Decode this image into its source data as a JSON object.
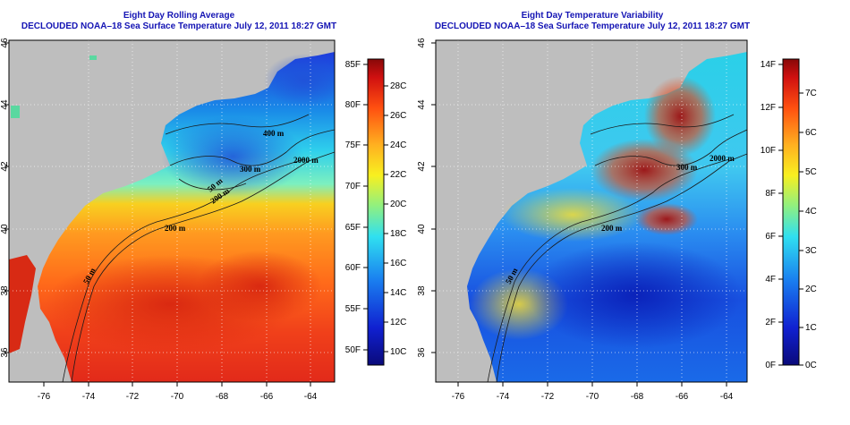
{
  "left_panel": {
    "title_line1": "Eight Day Rolling Average",
    "title_line2": "DECLOUDED NOAA–18 Sea Surface Temperature July 12, 2011 18:27 GMT",
    "colorbar_left": [
      "85F",
      "80F",
      "75F",
      "70F",
      "65F",
      "60F",
      "55F",
      "50F"
    ],
    "colorbar_right": [
      "28C",
      "26C",
      "24C",
      "22C",
      "20C",
      "18C",
      "16C",
      "14C",
      "12C",
      "10C"
    ],
    "contours": [
      "400 m",
      "2000 m",
      "300 m",
      "200 m",
      "50 m",
      "200 m",
      "50 m"
    ]
  },
  "right_panel": {
    "title_line1": "Eight Day Temperature Variability",
    "title_line2": "DECLOUDED NOAA–18 Sea Surface Temperature July 12, 2011 18:27 GMT",
    "colorbar_left": [
      "14F",
      "12F",
      "10F",
      "8F",
      "6F",
      "4F",
      "2F",
      "0F"
    ],
    "colorbar_right": [
      "7C",
      "6C",
      "5C",
      "4C",
      "3C",
      "2C",
      "1C",
      "0C"
    ],
    "contours": [
      "300 m",
      "2000 m",
      "200 m",
      "50 m"
    ]
  },
  "axes": {
    "lon_ticks": [
      "-76",
      "-74",
      "-72",
      "-70",
      "-68",
      "-66",
      "-64"
    ],
    "lat_ticks": [
      "46",
      "44",
      "42",
      "40",
      "38",
      "36"
    ]
  },
  "colors": {
    "title": "#1414b4",
    "land": "#bebebe",
    "frame": "#000000"
  }
}
